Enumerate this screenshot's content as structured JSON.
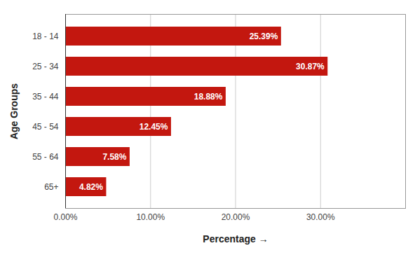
{
  "chart_data": {
    "type": "bar",
    "orientation": "horizontal",
    "x_label": "Percentage",
    "y_label": "Age Groups",
    "categories": [
      "18 - 14",
      "25 - 34",
      "35 - 44",
      "45 - 54",
      "55 - 64",
      "65+"
    ],
    "values": [
      25.39,
      30.87,
      18.88,
      12.45,
      7.58,
      4.82
    ],
    "value_labels": [
      "25.39%",
      "30.87%",
      "18.88%",
      "12.45%",
      "7.58%",
      "4.82%"
    ],
    "data_labels": true,
    "color": "#c3170f",
    "xlim": [
      0,
      40
    ],
    "xticks": [
      {
        "value": 0,
        "label": "0.00%"
      },
      {
        "value": 10,
        "label": "10.00%"
      },
      {
        "value": 20,
        "label": "20.00%"
      },
      {
        "value": 30,
        "label": "30.00%"
      }
    ],
    "grid": true
  }
}
